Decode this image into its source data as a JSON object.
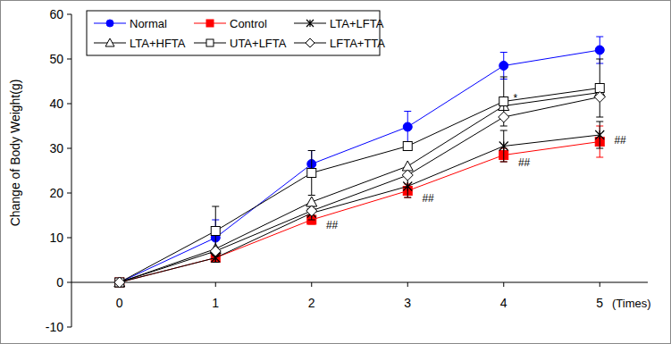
{
  "chart_data": {
    "type": "line",
    "y_label": "Change of Body Weight(g)",
    "x_label": "(Times)",
    "x": [
      0,
      1,
      2,
      3,
      4,
      5
    ],
    "xlim": [
      -0.5,
      5.5
    ],
    "xticks": [
      0,
      1,
      2,
      3,
      4,
      5
    ],
    "ylim": [
      -10,
      60
    ],
    "yticks": [
      -10,
      0,
      10,
      20,
      30,
      40,
      50,
      60
    ],
    "grid": false,
    "legend": "top-left",
    "series": [
      {
        "name": "Normal",
        "color": "#0000ff",
        "marker": "filled-circle",
        "values": [
          0,
          10,
          26.5,
          34.8,
          48.5,
          52
        ],
        "errors": [
          0,
          4,
          3,
          3.5,
          3,
          3
        ]
      },
      {
        "name": "Control",
        "color": "#ff0000",
        "marker": "filled-square",
        "values": [
          0,
          5.5,
          14,
          20.5,
          28.5,
          31.5
        ],
        "errors": [
          0,
          1,
          1,
          1.5,
          1.5,
          3.5
        ]
      },
      {
        "name": "LTA+LFTA",
        "color": "#000000",
        "marker": "asterisk",
        "values": [
          0,
          5.5,
          15.5,
          21.5,
          30.5,
          33
        ],
        "errors": [
          0,
          1,
          1.5,
          2.5,
          3.5,
          3
        ]
      },
      {
        "name": "LTA+HFTA",
        "color": "#000000",
        "marker": "open-triangle",
        "values": [
          0,
          7.5,
          18,
          26,
          39.5,
          42.5
        ],
        "errors": [
          0,
          0,
          0,
          0,
          0,
          0
        ]
      },
      {
        "name": "UTA+LFTA",
        "color": "#000000",
        "marker": "open-square",
        "values": [
          0,
          11.5,
          24.5,
          30.5,
          40.5,
          43.5
        ],
        "errors": [
          0,
          5.5,
          5,
          0,
          5.5,
          6.5
        ]
      },
      {
        "name": "LFTA+TTA",
        "color": "#000000",
        "marker": "open-diamond",
        "values": [
          0,
          7,
          16,
          24,
          37,
          41.5
        ],
        "errors": [
          0,
          0,
          0,
          0,
          0,
          0
        ]
      }
    ],
    "annotations": [
      {
        "text": "*",
        "x": 4.1,
        "y": 41.5
      },
      {
        "text": "##",
        "x": 2.15,
        "y": 13
      },
      {
        "text": "##",
        "x": 3.15,
        "y": 19
      },
      {
        "text": "##",
        "x": 4.15,
        "y": 27
      },
      {
        "text": "##",
        "x": 5.15,
        "y": 32
      }
    ]
  }
}
